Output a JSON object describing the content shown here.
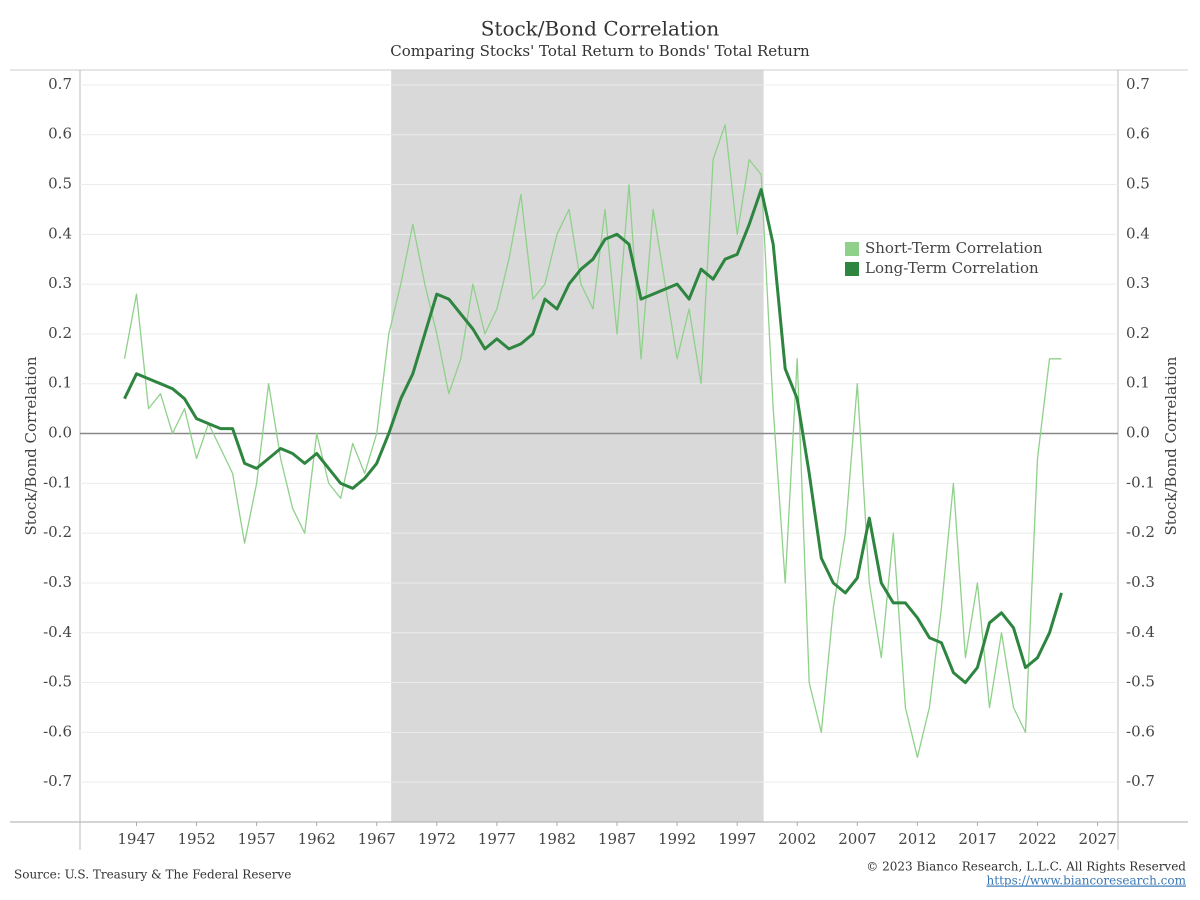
{
  "chart_data": {
    "type": "line",
    "title": "Stock/Bond Correlation",
    "subtitle": "Comparing Stocks' Total Return to Bonds' Total Return",
    "y_label": "Stock/Bond Correlation",
    "source": "Source: U.S. Treasury & The Federal Reserve",
    "copyright": "© 2023 Bianco Research, L.L.C. All Rights Reserved",
    "url": "https://www.biancoresearch.com",
    "x": [
      1946,
      1947,
      1948,
      1949,
      1950,
      1951,
      1952,
      1953,
      1954,
      1955,
      1956,
      1957,
      1958,
      1959,
      1960,
      1961,
      1962,
      1963,
      1964,
      1965,
      1966,
      1967,
      1968,
      1969,
      1970,
      1971,
      1972,
      1973,
      1974,
      1975,
      1976,
      1977,
      1978,
      1979,
      1980,
      1981,
      1982,
      1983,
      1984,
      1985,
      1986,
      1987,
      1988,
      1989,
      1990,
      1991,
      1992,
      1993,
      1994,
      1995,
      1996,
      1997,
      1998,
      1999,
      2000,
      2001,
      2002,
      2003,
      2004,
      2005,
      2006,
      2007,
      2008,
      2009,
      2010,
      2011,
      2012,
      2013,
      2014,
      2015,
      2016,
      2017,
      2018,
      2019,
      2020,
      2021,
      2022,
      2023,
      2024
    ],
    "series": [
      {
        "name": "Short-Term Correlation",
        "color": "#8fd18a",
        "width": 1.3,
        "values": [
          0.15,
          0.28,
          0.05,
          0.08,
          0.0,
          0.05,
          -0.05,
          0.02,
          -0.03,
          -0.08,
          -0.22,
          -0.1,
          0.1,
          -0.05,
          -0.15,
          -0.2,
          0.0,
          -0.1,
          -0.13,
          -0.02,
          -0.08,
          0.0,
          0.2,
          0.3,
          0.42,
          0.3,
          0.2,
          0.08,
          0.15,
          0.3,
          0.2,
          0.25,
          0.35,
          0.48,
          0.27,
          0.3,
          0.4,
          0.45,
          0.3,
          0.25,
          0.45,
          0.2,
          0.5,
          0.15,
          0.45,
          0.3,
          0.15,
          0.25,
          0.1,
          0.55,
          0.62,
          0.4,
          0.55,
          0.52,
          0.05,
          -0.3,
          0.15,
          -0.5,
          -0.6,
          -0.35,
          -0.2,
          0.1,
          -0.3,
          -0.45,
          -0.2,
          -0.55,
          -0.65,
          -0.55,
          -0.35,
          -0.1,
          -0.45,
          -0.3,
          -0.55,
          -0.4,
          -0.55,
          -0.6,
          -0.05,
          0.15,
          0.15
        ]
      },
      {
        "name": "Long-Term Correlation",
        "color": "#2e8540",
        "width": 3,
        "values": [
          0.07,
          0.12,
          0.11,
          0.1,
          0.09,
          0.07,
          0.03,
          0.02,
          0.01,
          0.01,
          -0.06,
          -0.07,
          -0.05,
          -0.03,
          -0.04,
          -0.06,
          -0.04,
          -0.07,
          -0.1,
          -0.11,
          -0.09,
          -0.06,
          0.0,
          0.07,
          0.12,
          0.2,
          0.28,
          0.27,
          0.24,
          0.21,
          0.17,
          0.19,
          0.17,
          0.18,
          0.2,
          0.27,
          0.25,
          0.3,
          0.33,
          0.35,
          0.39,
          0.4,
          0.38,
          0.27,
          0.28,
          0.29,
          0.3,
          0.27,
          0.33,
          0.31,
          0.35,
          0.36,
          0.42,
          0.49,
          0.38,
          0.13,
          0.07,
          -0.08,
          -0.25,
          -0.3,
          -0.32,
          -0.29,
          -0.17,
          -0.3,
          -0.34,
          -0.34,
          -0.37,
          -0.41,
          -0.42,
          -0.48,
          -0.5,
          -0.47,
          -0.38,
          -0.36,
          -0.39,
          -0.47,
          -0.45,
          -0.4,
          -0.32
        ]
      }
    ],
    "xlim": [
      1942.3,
      2028.7
    ],
    "xticks": [
      1947,
      1952,
      1957,
      1962,
      1967,
      1972,
      1977,
      1982,
      1987,
      1992,
      1997,
      2002,
      2007,
      2012,
      2017,
      2022,
      2027
    ],
    "ylim": [
      -0.78,
      0.73
    ],
    "yticks": [
      -0.7,
      -0.6,
      -0.5,
      -0.4,
      -0.3,
      -0.2,
      -0.1,
      {
        "value": 0,
        "label": "0.0"
      },
      0.1,
      0.2,
      0.3,
      0.4,
      0.5,
      0.6,
      0.7
    ],
    "shaded": [
      1968.2,
      1999.2
    ],
    "shade_color": "#d9d9d9",
    "grid": true,
    "legend": "upper right"
  }
}
